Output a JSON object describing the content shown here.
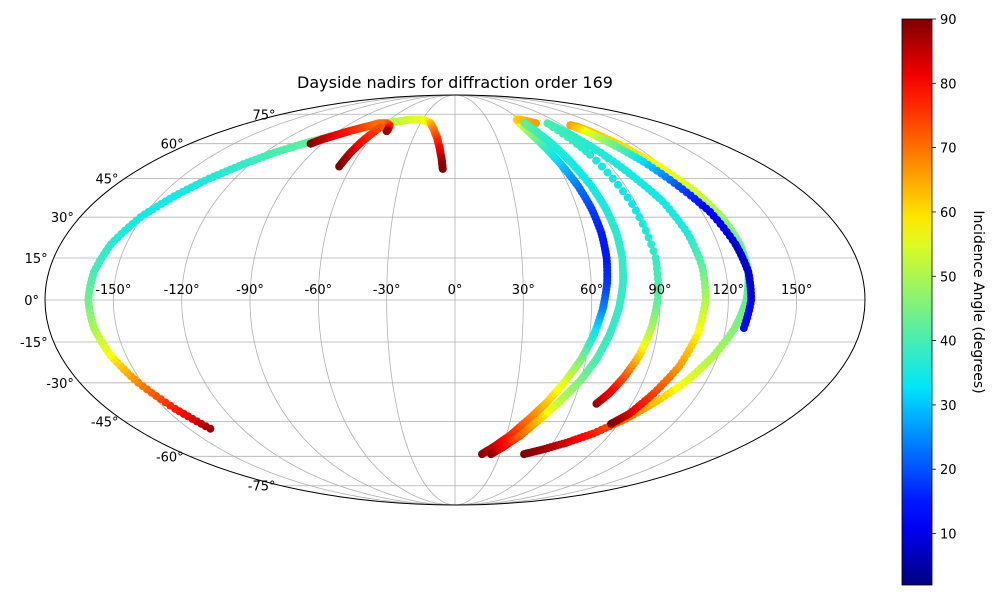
{
  "chart_data": {
    "type": "scatter",
    "title": "Dayside nadirs for diffraction order 169",
    "projection": "mollweide",
    "grid": true,
    "longitude_ticks": [
      "-150°",
      "-120°",
      "-90°",
      "-60°",
      "-30°",
      "0°",
      "30°",
      "60°",
      "90°",
      "120°",
      "150°"
    ],
    "latitude_ticks": [
      "75°",
      "60°",
      "45°",
      "30°",
      "15°",
      "0°",
      "-15°",
      "-30°",
      "-45°",
      "-60°",
      "-75°"
    ],
    "colorbar": {
      "label": "Incidence Angle (degrees)",
      "colormap": "jet",
      "range": [
        2,
        90
      ],
      "ticks": [
        "10",
        "20",
        "30",
        "40",
        "50",
        "60",
        "70",
        "80",
        "90"
      ]
    },
    "series": [
      {
        "lon": [
          -138,
          -145,
          -152,
          -157,
          -160,
          -161,
          -160,
          -157,
          -151,
          -143,
          -134,
          -124,
          -114,
          -103,
          -92,
          -82,
          -72,
          -61,
          -51,
          -41,
          -31,
          -25,
          -21
        ],
        "lat": [
          -48,
          -40,
          -30,
          -20,
          -10,
          0,
          10,
          20,
          30,
          38,
          45,
          51,
          56,
          60,
          63,
          66,
          68,
          70,
          71,
          72,
          72,
          71,
          70
        ],
        "incidence": [
          88,
          78,
          68,
          58,
          50,
          44,
          40,
          37,
          35,
          35,
          36,
          38,
          40,
          42,
          44,
          46,
          48,
          50,
          52,
          54,
          56,
          58,
          60
        ]
      },
      {
        "lon": [
          -21,
          -17,
          -13,
          -10,
          -8,
          -7
        ],
        "lat": [
          70,
          67,
          63,
          58,
          53,
          49
        ],
        "incidence": [
          62,
          68,
          74,
          80,
          86,
          90
        ]
      },
      {
        "lon": [
          -98,
          -94,
          -88,
          -82,
          -74,
          -66,
          -59,
          -55,
          -53,
          -53
        ],
        "lat": [
          60,
          62,
          64,
          66,
          68,
          70,
          70,
          69,
          67,
          66
        ],
        "incidence": [
          90,
          86,
          82,
          78,
          74,
          70,
          70,
          74,
          80,
          88
        ]
      },
      {
        "lon": [
          -61,
          -64,
          -66,
          -67
        ],
        "lat": [
          68,
          62,
          56,
          50
        ],
        "incidence": [
          72,
          78,
          84,
          90
        ]
      },
      {
        "lon": [
          18,
          24,
          32,
          40,
          47,
          53,
          58,
          62,
          65,
          67,
          68,
          68,
          67,
          65,
          62,
          59,
          57,
          56,
          57,
          60,
          65,
          70
        ],
        "lat": [
          -59,
          -56,
          -51,
          -44,
          -37,
          -29,
          -21,
          -12,
          -3,
          6,
          15,
          24,
          33,
          42,
          51,
          59,
          65,
          70,
          72,
          72,
          71,
          70
        ],
        "incidence": [
          90,
          85,
          78,
          70,
          62,
          55,
          45,
          35,
          25,
          18,
          15,
          15,
          18,
          23,
          30,
          38,
          46,
          54,
          60,
          62,
          64,
          66
        ]
      },
      {
        "lon": [
          24,
          30,
          38,
          46,
          53,
          60,
          65,
          69,
          72,
          74,
          75,
          75,
          74,
          72,
          69,
          66,
          63,
          60
        ],
        "lat": [
          -59,
          -56,
          -51,
          -44,
          -37,
          -29,
          -21,
          -12,
          -3,
          6,
          15,
          24,
          33,
          42,
          51,
          59,
          65,
          70
        ],
        "incidence": [
          90,
          82,
          72,
          62,
          52,
          45,
          40,
          38,
          38,
          38,
          38,
          37,
          36,
          35,
          35,
          36,
          38,
          42
        ]
      },
      {
        "lon": [
          72,
          76,
          80,
          84,
          87,
          89,
          90,
          88,
          84,
          80
        ],
        "lat": [
          -38,
          -34,
          -28,
          -20,
          -10,
          0,
          15,
          35,
          55,
          68
        ],
        "incidence": [
          88,
          82,
          74,
          62,
          50,
          42,
          38,
          34,
          36,
          40
        ]
      },
      {
        "lon": [
          46,
          56,
          68,
          80,
          92,
          102,
          111,
          118,
          124,
          128,
          130,
          130,
          128,
          124,
          118,
          112,
          106,
          101,
          97
        ],
        "lat": [
          -59,
          -57,
          -54,
          -50,
          -44,
          -37,
          -29,
          -20,
          -10,
          0,
          10,
          20,
          30,
          40,
          50,
          58,
          64,
          68,
          69
        ],
        "incidence": [
          90,
          88,
          84,
          78,
          70,
          62,
          56,
          50,
          46,
          42,
          40,
          44,
          48,
          54,
          58,
          60,
          62,
          64,
          66
        ]
      },
      {
        "lon": [
          97,
          101,
          106,
          112,
          118,
          124,
          128,
          130,
          130,
          128
        ],
        "lat": [
          69,
          66,
          60,
          52,
          42,
          32,
          20,
          10,
          0,
          -10
        ],
        "incidence": [
          66,
          58,
          45,
          32,
          20,
          12,
          8,
          8,
          10,
          14
        ]
      },
      {
        "lon": [
          80,
          86,
          92,
          98,
          104,
          108,
          110,
          110,
          108,
          104,
          98,
          92,
          86
        ],
        "lat": [
          70,
          64,
          56,
          46,
          36,
          24,
          12,
          0,
          -12,
          -24,
          -34,
          -42,
          -46
        ],
        "incidence": [
          40,
          38,
          36,
          35,
          35,
          36,
          42,
          50,
          58,
          66,
          74,
          82,
          90
        ]
      }
    ]
  }
}
